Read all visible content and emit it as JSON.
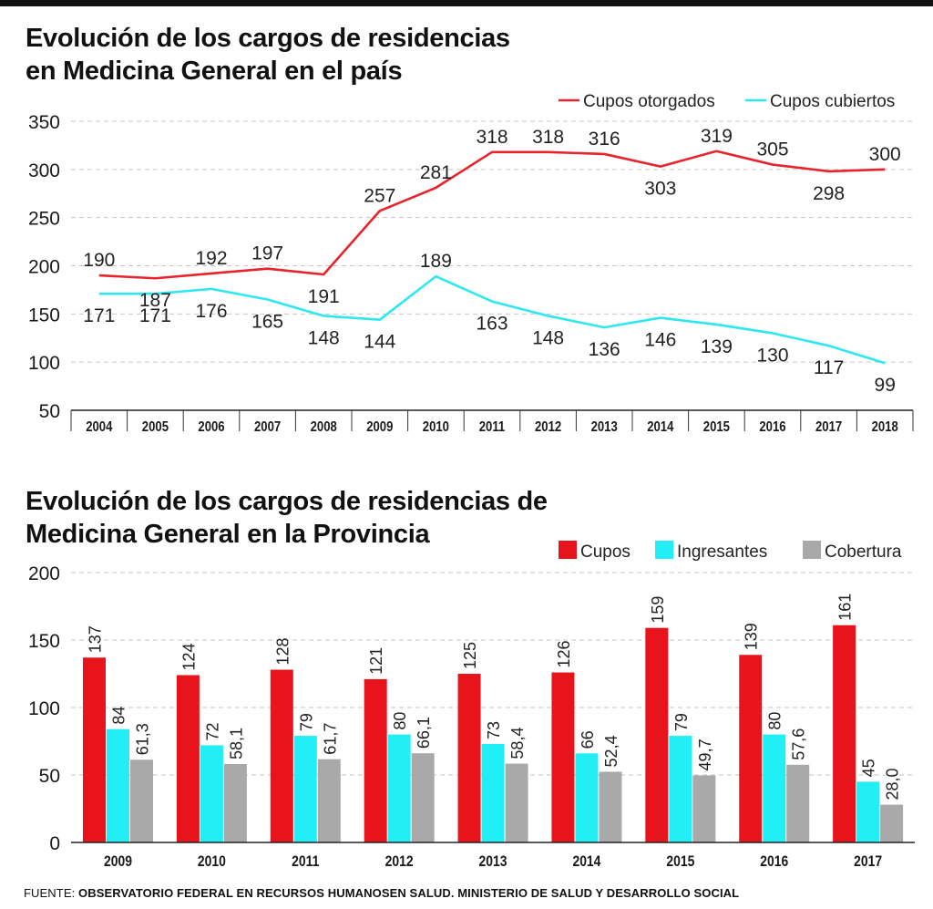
{
  "chart_data": [
    {
      "type": "line",
      "title_line1": "Evolución de los cargos de residencias",
      "title_line2": "en Medicina General en el país",
      "x": [
        "2004",
        "2005",
        "2006",
        "2007",
        "2008",
        "2009",
        "2010",
        "2011",
        "2012",
        "2013",
        "2014",
        "2015",
        "2016",
        "2017",
        "2018"
      ],
      "yticks": [
        50,
        100,
        150,
        200,
        250,
        300,
        350
      ],
      "ylim": [
        50,
        350
      ],
      "grid": true,
      "legend_position": "top-right",
      "series": [
        {
          "name": "Cupos otorgados",
          "color": "#e8232b",
          "values": [
            190,
            187,
            192,
            197,
            191,
            257,
            281,
            318,
            318,
            316,
            303,
            319,
            305,
            298,
            300
          ],
          "labels": [
            "190",
            "187",
            "192",
            "197",
            "191",
            "257",
            "281",
            "318",
            "318",
            "316",
            "303",
            "319",
            "305",
            "298",
            "300"
          ]
        },
        {
          "name": "Cupos cubiertos",
          "color": "#2ee8f0",
          "values": [
            171,
            171,
            176,
            165,
            148,
            144,
            189,
            163,
            148,
            136,
            146,
            139,
            130,
            117,
            99
          ],
          "labels": [
            "171",
            "171",
            "176",
            "165",
            "148",
            "144",
            "189",
            "163",
            "148",
            "136",
            "146",
            "139",
            "130",
            "117",
            "99"
          ]
        }
      ]
    },
    {
      "type": "bar",
      "title_line1": "Evolución de los cargos de residencias de",
      "title_line2": "Medicina General en la Provincia",
      "categories": [
        "2009",
        "2010",
        "2011",
        "2012",
        "2013",
        "2014",
        "2015",
        "2016",
        "2017"
      ],
      "yticks": [
        0,
        50,
        100,
        150,
        200
      ],
      "ylim": [
        0,
        200
      ],
      "grid": true,
      "legend_position": "top-right",
      "series": [
        {
          "name": "Cupos",
          "color": "#e8141c",
          "values": [
            137,
            124,
            128,
            121,
            125,
            126,
            159,
            139,
            161
          ],
          "labels": [
            "137",
            "124",
            "128",
            "121",
            "125",
            "126",
            "159",
            "139",
            "161"
          ]
        },
        {
          "name": "Ingresantes",
          "color": "#22eef5",
          "values": [
            84,
            72,
            79,
            80,
            73,
            66,
            79,
            80,
            45
          ],
          "labels": [
            "84",
            "72",
            "79",
            "80",
            "73",
            "66",
            "79",
            "80",
            "45"
          ]
        },
        {
          "name": "Cobertura",
          "color": "#a9a9a9",
          "values": [
            61.3,
            58.1,
            61.7,
            66.1,
            58.4,
            52.4,
            49.7,
            57.6,
            28.0
          ],
          "labels": [
            "61,3",
            "58,1",
            "61,7",
            "66,1",
            "58,4",
            "52,4",
            "49,7",
            "57,6",
            "28,0"
          ]
        }
      ]
    }
  ],
  "source": {
    "label": "FUENTE:",
    "text": "OBSERVATORIO FEDERAL EN RECURSOS HUMANOSEN SALUD. MINISTERIO DE SALUD Y DESARROLLO SOCIAL"
  }
}
